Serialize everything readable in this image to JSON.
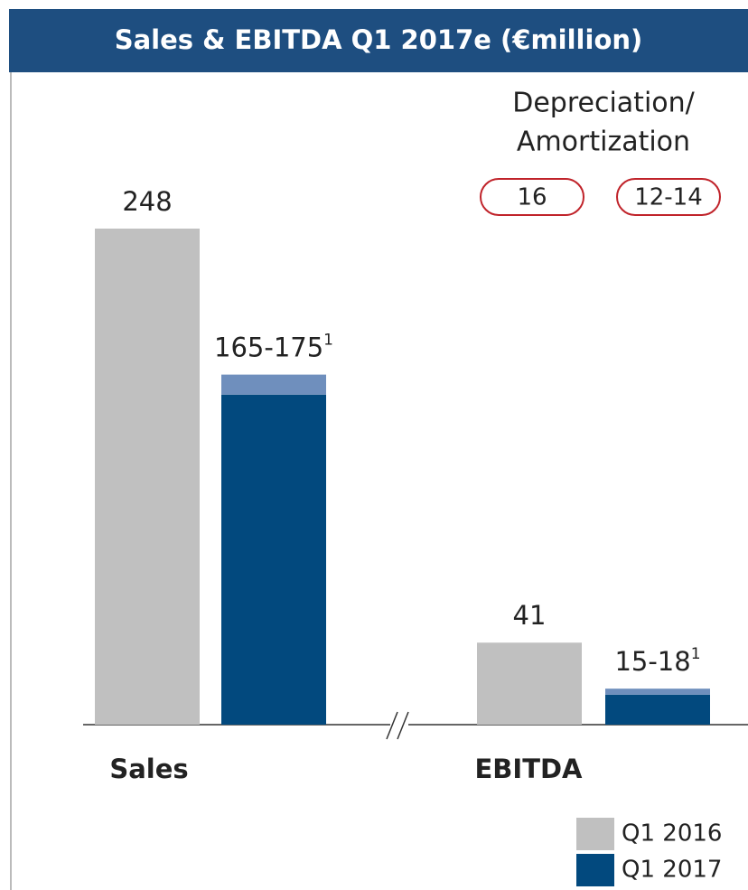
{
  "chart_data": {
    "type": "bar",
    "title": "Sales & EBITDA Q1 2017e (€million)",
    "categories": [
      "Sales",
      "EBITDA"
    ],
    "series": [
      {
        "name": "Q1 2016",
        "color": "#c0c0c0",
        "values": [
          248,
          41
        ]
      },
      {
        "name": "Q1 2017",
        "color": "#02497e",
        "values": [
          165,
          15
        ],
        "range_values": [
          10,
          3
        ],
        "range_color": "#6f8fbd",
        "value_labels": [
          "165-175",
          "15-18"
        ],
        "footnote": "1"
      }
    ],
    "annotation": {
      "lines": [
        "Depreciation/",
        "Amortization"
      ],
      "values": [
        16,
        "12-14"
      ],
      "color": "#c0232a"
    },
    "legend": "bottom-right"
  }
}
